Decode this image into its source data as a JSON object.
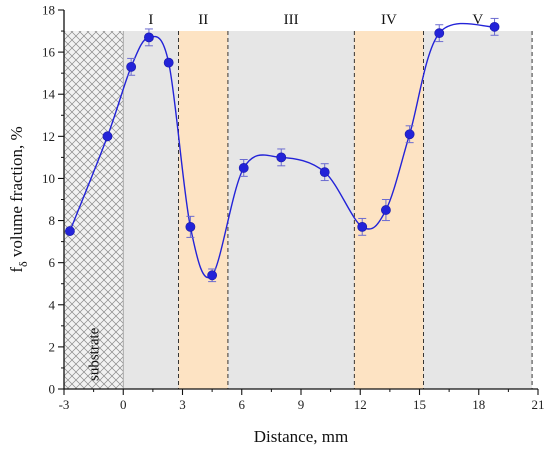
{
  "chart_data": {
    "type": "scatter",
    "xlabel": "Distance, mm",
    "ylabel_main": "f",
    "ylabel_sub": "δ",
    "ylabel_rest": " volume fraction, %",
    "xlim": [
      -3,
      21
    ],
    "ylim": [
      0,
      18
    ],
    "x_ticks": [
      "-3",
      "0",
      "3",
      "6",
      "9",
      "12",
      "15",
      "18",
      "21"
    ],
    "y_ticks": [
      "0",
      "2",
      "4",
      "6",
      "8",
      "10",
      "12",
      "14",
      "16",
      "18"
    ],
    "x": [
      -2.7,
      -0.8,
      0.4,
      1.3,
      2.3,
      3.4,
      4.5,
      6.1,
      8.0,
      10.2,
      12.1,
      13.3,
      14.5,
      16.0,
      18.8
    ],
    "y": [
      7.5,
      12.0,
      15.3,
      16.7,
      15.5,
      7.7,
      5.4,
      10.5,
      11.0,
      10.3,
      7.7,
      8.5,
      12.1,
      16.9,
      17.2
    ],
    "err": [
      0.0,
      0.0,
      0.4,
      0.4,
      0.0,
      0.5,
      0.3,
      0.4,
      0.4,
      0.4,
      0.4,
      0.5,
      0.4,
      0.4,
      0.4
    ],
    "regions": [
      {
        "label": "substrate",
        "from": -3,
        "to": 0,
        "fill": "hatch"
      },
      {
        "label": "I",
        "from": 0,
        "to": 2.8,
        "fill": "#e6e6e6"
      },
      {
        "label": "II",
        "from": 2.8,
        "to": 5.3,
        "fill": "#fde3c3"
      },
      {
        "label": "III",
        "from": 5.3,
        "to": 11.7,
        "fill": "#e6e6e6"
      },
      {
        "label": "IV",
        "from": 11.7,
        "to": 15.2,
        "fill": "#fde3c3"
      },
      {
        "label": "V",
        "from": 15.2,
        "to": 20.7,
        "fill": "#e6e6e6"
      }
    ],
    "marker_color": "#2323d8",
    "line_color": "#2323d8"
  }
}
